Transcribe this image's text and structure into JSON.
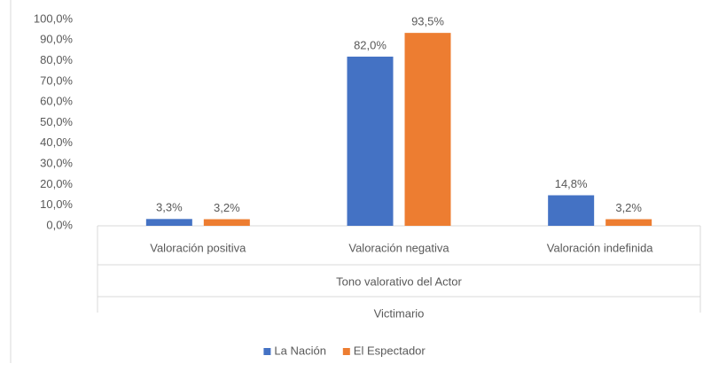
{
  "chart_data": {
    "type": "bar",
    "categories": [
      "Valoración positiva",
      "Valoración negativa",
      "Valoración indefinida"
    ],
    "x_group_labels": [
      "Tono valorativo del Actor",
      "Victimario"
    ],
    "series": [
      {
        "name": "La Nación",
        "color": "#4472c4",
        "values": [
          3.3,
          82.0,
          14.8
        ],
        "value_labels": [
          "3,3%",
          "82,0%",
          "14,8%"
        ]
      },
      {
        "name": "El Espectador",
        "color": "#ed7d31",
        "values": [
          3.2,
          93.5,
          3.2
        ],
        "value_labels": [
          "3,2%",
          "93,5%",
          "3,2%"
        ]
      }
    ],
    "ylim": [
      0,
      100
    ],
    "yticks": [
      {
        "value": 0,
        "label": "0,0%"
      },
      {
        "value": 10,
        "label": "10,0%"
      },
      {
        "value": 20,
        "label": "20,0%"
      },
      {
        "value": 30,
        "label": "30,0%"
      },
      {
        "value": 40,
        "label": "40,0%"
      },
      {
        "value": 50,
        "label": "50,0%"
      },
      {
        "value": 60,
        "label": "60,0%"
      },
      {
        "value": 70,
        "label": "70,0%"
      },
      {
        "value": 80,
        "label": "80,0%"
      },
      {
        "value": 90,
        "label": "90,0%"
      },
      {
        "value": 100,
        "label": "100,0%"
      }
    ],
    "grid": false,
    "legend": "bottom"
  }
}
